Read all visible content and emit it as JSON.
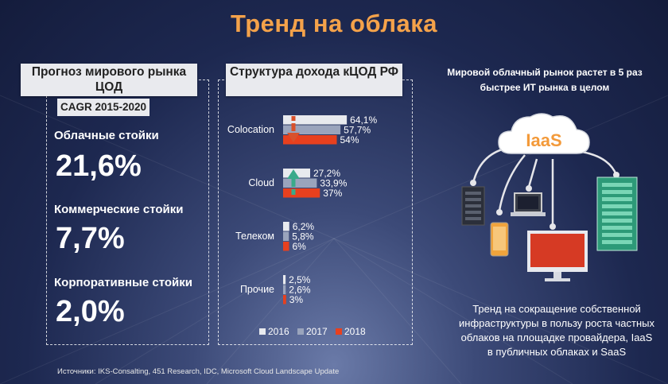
{
  "title": "Тренд на облака",
  "left_panel": {
    "heading": "Прогноз мирового рынка ЦОД",
    "subheading": "CAGR 2015-2020",
    "items": [
      {
        "label": "Облачные стойки",
        "value": "21,6%"
      },
      {
        "label": "Коммерческие стойки",
        "value": "7,7%"
      },
      {
        "label": "Корпоративные стойки",
        "value": "2,0%"
      }
    ]
  },
  "middle_panel": {
    "heading": "Структура дохода кЦОД РФ"
  },
  "chart_data": {
    "type": "bar",
    "orientation": "horizontal",
    "categories": [
      "Colocation",
      "Cloud",
      "Телеком",
      "Прочие"
    ],
    "series": [
      {
        "name": "2016",
        "values": [
          64.1,
          27.2,
          6.2,
          2.5
        ],
        "labels": [
          "64,1%",
          "27,2%",
          "6,2%",
          "2,5%"
        ],
        "color": "#e8eaee"
      },
      {
        "name": "2017",
        "values": [
          57.7,
          33.9,
          5.8,
          2.6
        ],
        "labels": [
          "57,7%",
          "33,9%",
          "5,8%",
          "2,6%"
        ],
        "color": "#9aa4bc"
      },
      {
        "name": "2018",
        "values": [
          54,
          37,
          6,
          3
        ],
        "labels": [
          "54%",
          "37%",
          "6%",
          "3%"
        ],
        "color": "#e8401e"
      }
    ],
    "xlim": [
      0,
      100
    ],
    "legend": "bottom",
    "trend_arrows": [
      {
        "category": "Colocation",
        "direction": "down",
        "color": "#d8522c"
      },
      {
        "category": "Cloud",
        "direction": "up",
        "color": "#3aaa8a"
      }
    ]
  },
  "right_panel": {
    "top_text": "Мировой облачный рынок растет в 5 раз быстрее ИТ рынка в целом",
    "cloud_label": "IaaS",
    "bottom_text": "Тренд на сокращение собственной инфраструктуры в пользу роста частных облаков на площадке провайдера, IaaS в публичных облаках и SaaS"
  },
  "source": "Источники: IKS-Consalting, 451 Research, IDC, Microsoft Cloud Landscape Update",
  "colors": {
    "title": "#f4a24a",
    "accent_red": "#e8401e",
    "accent_green": "#3aaa8a"
  },
  "icons": [
    "server-icon",
    "phone-icon",
    "laptop-icon",
    "monitor-icon",
    "server-rack-icon",
    "cloud-icon"
  ]
}
